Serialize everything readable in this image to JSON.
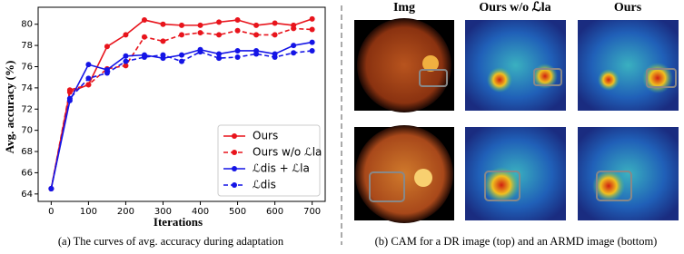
{
  "chart_data": {
    "type": "line",
    "ylabel": "Avg. accuracy (%)",
    "xlabel": "Iterations",
    "caption": "(a) The curves of avg. accuracy during adaptation",
    "x": [
      0,
      50,
      100,
      150,
      200,
      250,
      300,
      350,
      400,
      450,
      500,
      550,
      600,
      650,
      700
    ],
    "series": [
      {
        "name": "Ours",
        "color": "#e8141c",
        "dashed": false,
        "values": [
          64.5,
          73.6,
          74.3,
          77.9,
          79.0,
          80.4,
          80.0,
          79.9,
          79.9,
          80.2,
          80.4,
          79.9,
          80.1,
          79.9,
          80.5
        ]
      },
      {
        "name": "Ours w/o ℒla",
        "color": "#e8141c",
        "dashed": true,
        "values": [
          64.5,
          73.8,
          74.3,
          75.8,
          76.1,
          78.8,
          78.4,
          79.0,
          79.2,
          79.0,
          79.4,
          79.0,
          79.0,
          79.6,
          79.5
        ]
      },
      {
        "name": "ℒdis + ℒla",
        "color": "#1414e6",
        "dashed": false,
        "values": [
          64.5,
          72.8,
          76.2,
          75.7,
          77.0,
          77.1,
          76.8,
          77.1,
          77.6,
          77.2,
          77.5,
          77.5,
          77.2,
          78.0,
          78.3
        ]
      },
      {
        "name": "ℒdis",
        "color": "#1414e6",
        "dashed": true,
        "values": [
          64.5,
          73.0,
          74.9,
          75.4,
          76.5,
          76.9,
          77.1,
          76.5,
          77.4,
          76.8,
          76.9,
          77.2,
          76.9,
          77.3,
          77.5
        ]
      }
    ],
    "xlim": [
      -35,
      735
    ],
    "ylim": [
      63.3,
      81.6
    ],
    "xticks": [
      0,
      100,
      200,
      300,
      400,
      500,
      600,
      700
    ],
    "yticks": [
      64,
      66,
      68,
      70,
      72,
      74,
      76,
      78,
      80
    ],
    "legend": "lower right",
    "grid": false
  },
  "panel_b": {
    "headers": [
      "Img",
      "Ours w/o ℒla",
      "Ours"
    ],
    "caption": "(b) CAM for a DR image (top) and an ARMD image (bottom)"
  }
}
